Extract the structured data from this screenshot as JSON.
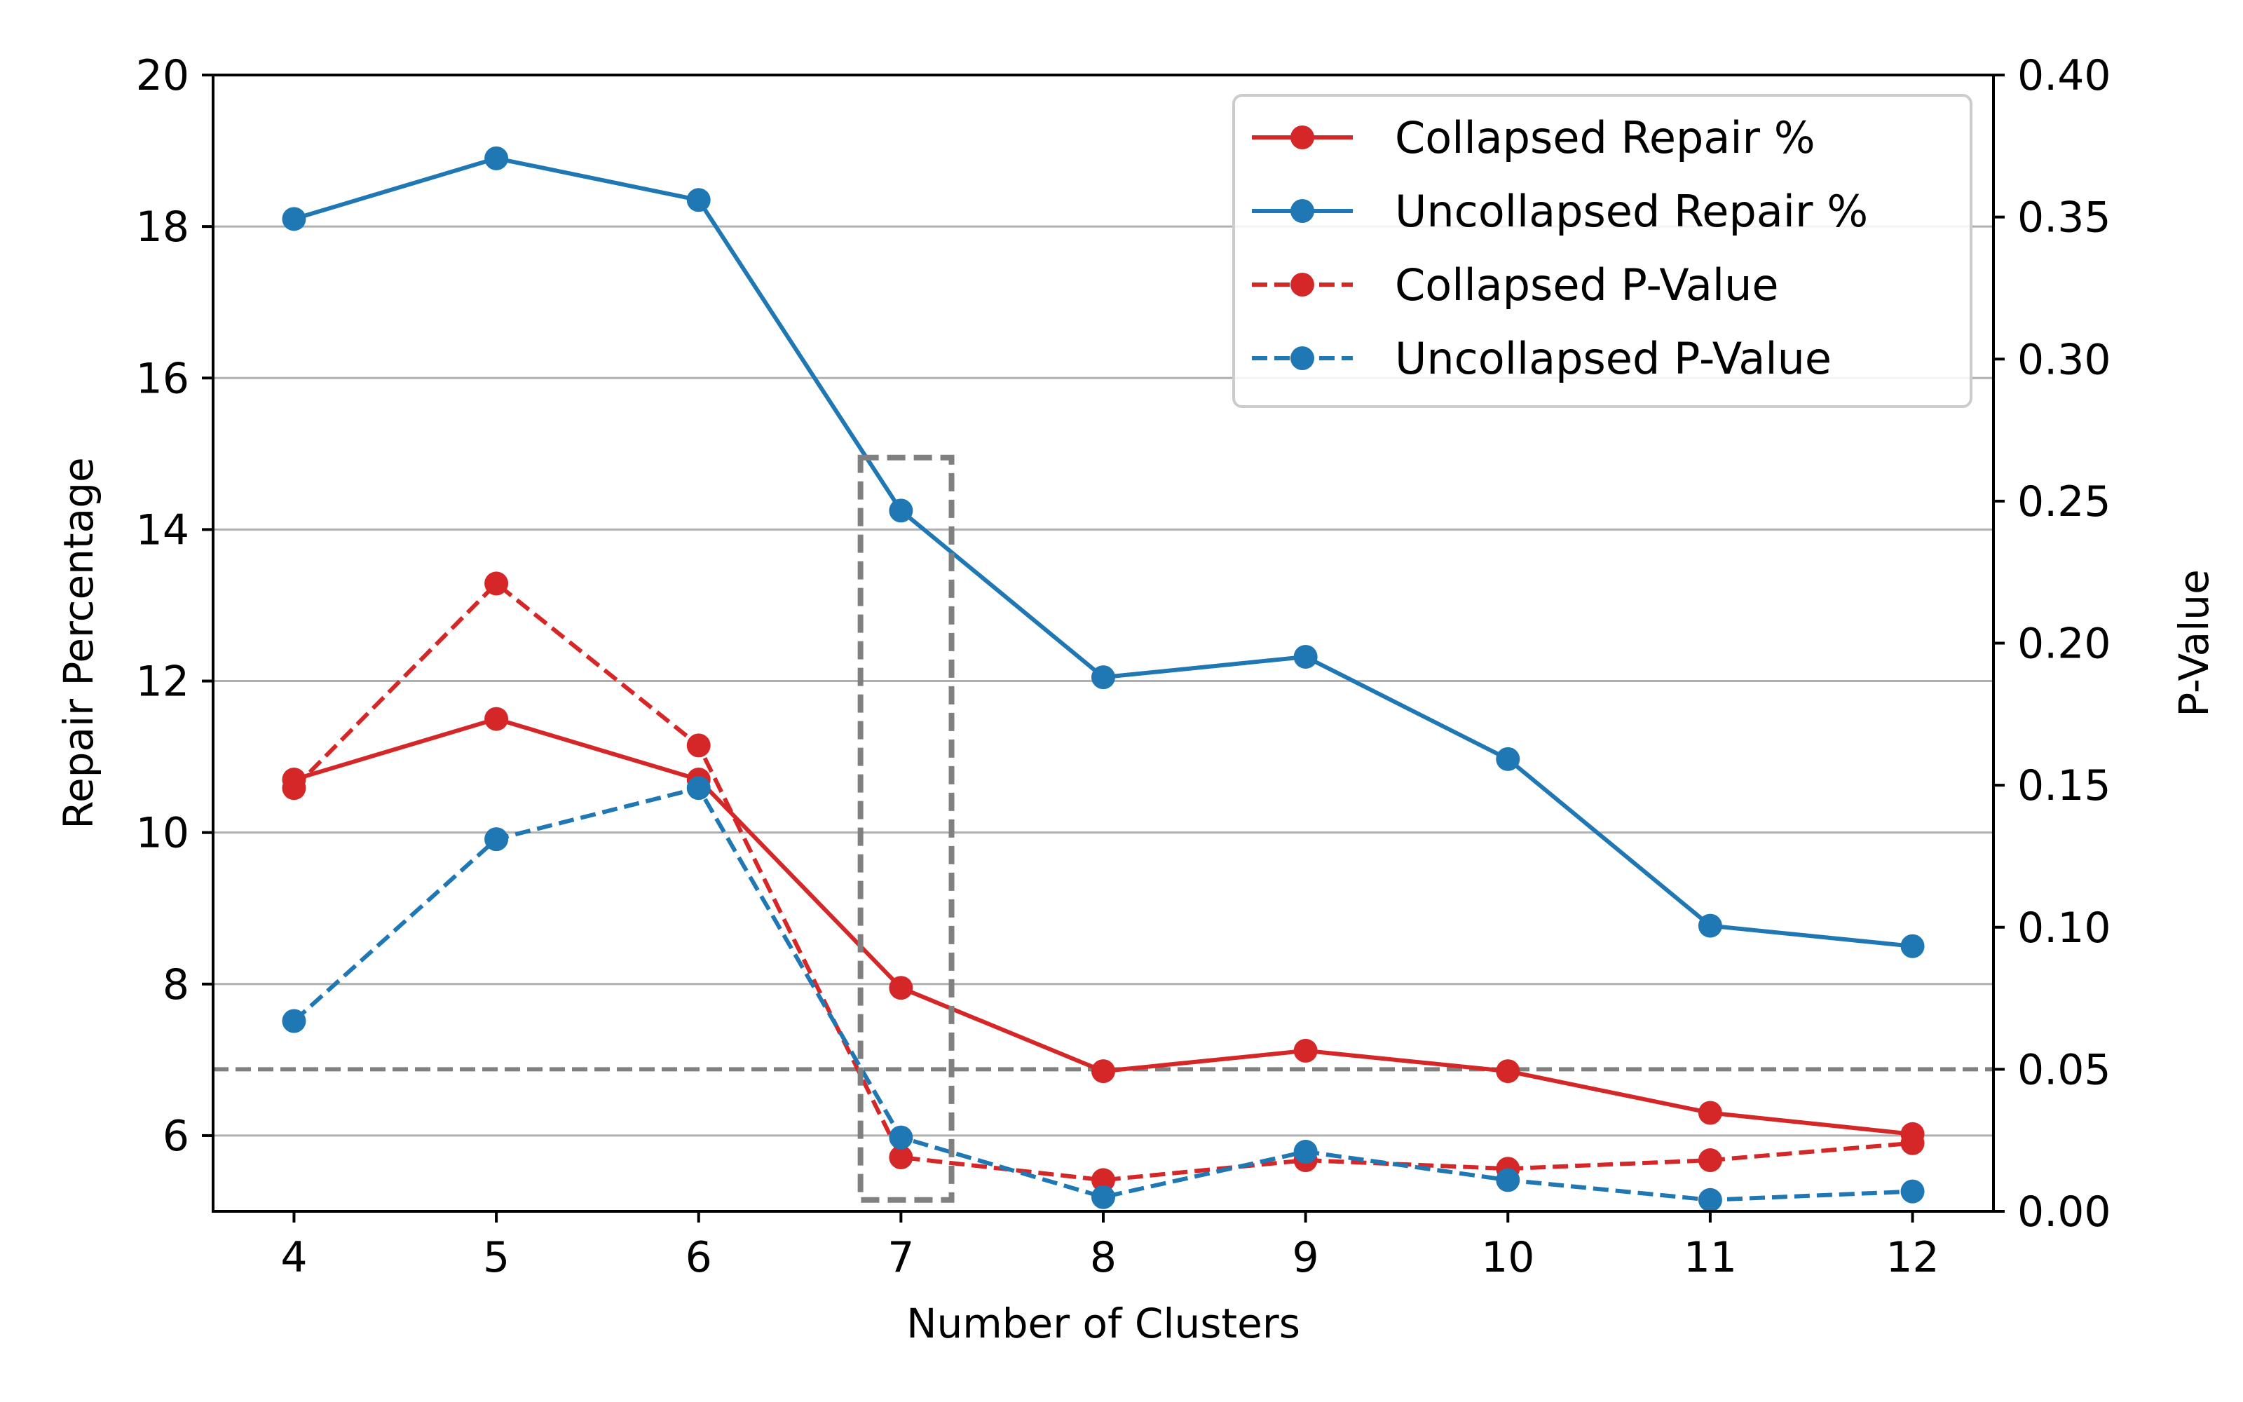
{
  "chart_data": {
    "type": "line",
    "x": [
      4,
      5,
      6,
      7,
      8,
      9,
      10,
      11,
      12
    ],
    "xlabel": "Number of Clusters",
    "ylabel": "Repair Percentage",
    "ylabel_right": "P-Value",
    "ylim": [
      5,
      20
    ],
    "ylim_right": [
      0.0,
      0.4
    ],
    "xticks": [
      "4",
      "5",
      "6",
      "7",
      "8",
      "9",
      "10",
      "11",
      "12"
    ],
    "yticks": [
      "6",
      "8",
      "10",
      "12",
      "14",
      "16",
      "18",
      "20"
    ],
    "yticks_right": [
      "0.00",
      "0.05",
      "0.10",
      "0.15",
      "0.20",
      "0.25",
      "0.30",
      "0.35",
      "0.40"
    ],
    "grid": "horizontal",
    "legend_position": "top-right",
    "series": [
      {
        "name": "Collapsed Repair %",
        "axis": "left",
        "style": "solid",
        "color": "#d62728",
        "values": [
          10.7,
          11.5,
          10.7,
          7.95,
          6.85,
          7.12,
          6.85,
          6.3,
          6.02
        ]
      },
      {
        "name": "Uncollapsed Repair %",
        "axis": "left",
        "style": "solid",
        "color": "#1f77b4",
        "values": [
          18.1,
          18.9,
          18.35,
          14.25,
          12.05,
          12.32,
          10.97,
          8.77,
          8.5
        ]
      },
      {
        "name": "Collapsed P-Value",
        "axis": "right",
        "style": "dashed",
        "color": "#d62728",
        "values": [
          0.149,
          0.221,
          0.164,
          0.019,
          0.011,
          0.018,
          0.015,
          0.018,
          0.024
        ]
      },
      {
        "name": "Uncollapsed P-Value",
        "axis": "right",
        "style": "dashed",
        "color": "#1f77b4",
        "values": [
          0.067,
          0.131,
          0.149,
          0.026,
          0.005,
          0.021,
          0.011,
          0.004,
          0.007
        ]
      }
    ],
    "reference_line": {
      "axis": "right",
      "value": 0.05,
      "style": "dashed",
      "color": "#808080"
    },
    "highlight_box": {
      "x_range": [
        6.8,
        7.25
      ],
      "y_range": [
        5.15,
        14.95
      ],
      "style": "dashed",
      "color": "#808080"
    }
  }
}
